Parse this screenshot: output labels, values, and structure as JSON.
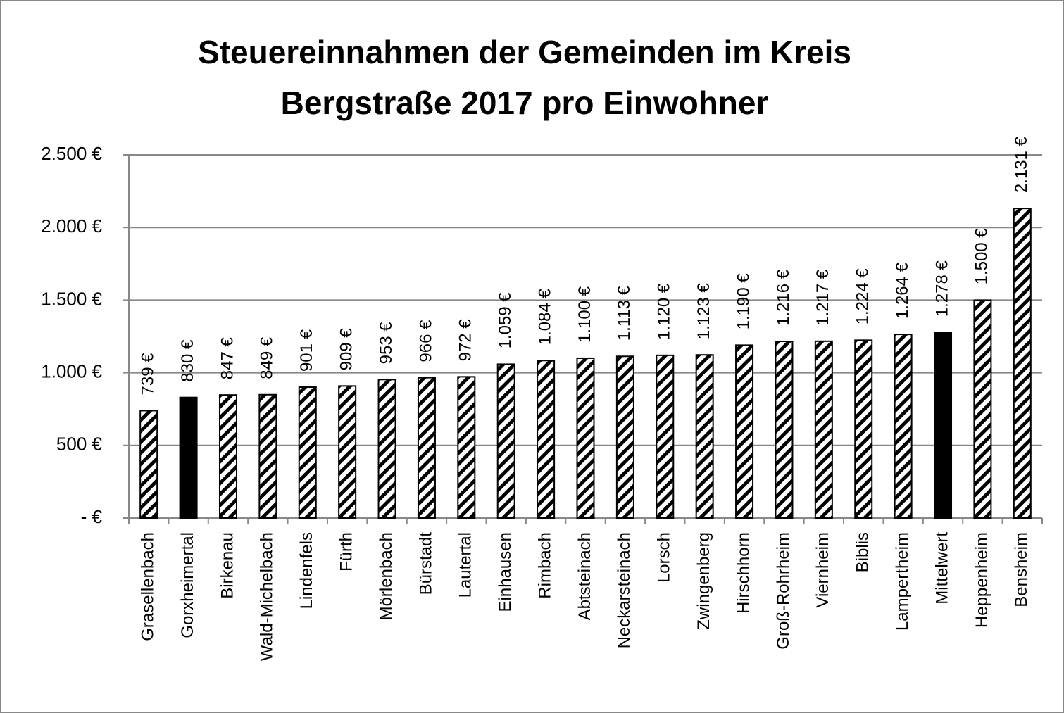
{
  "chart_data": {
    "type": "bar",
    "title": [
      "Steuereinnahmen der Gemeinden im Kreis",
      "Bergstraße 2017 pro Einwohner"
    ],
    "categories": [
      "Grasellenbach",
      "Gorxheimertal",
      "Birkenau",
      "Wald-Michelbach",
      "Lindenfels",
      "Fürth",
      "Mörlenbach",
      "Bürstadt",
      "Lautertal",
      "Einhausen",
      "Rimbach",
      "Abtsteinach",
      "Neckarsteinach",
      "Lorsch",
      "Zwingenberg",
      "Hirschhorn",
      "Groß-Rohrheim",
      "Viernheim",
      "Biblis",
      "Lampertheim",
      "Mittelwert",
      "Heppenheim",
      "Bensheim"
    ],
    "values": [
      739,
      830,
      847,
      849,
      901,
      909,
      953,
      966,
      972,
      1059,
      1084,
      1100,
      1113,
      1120,
      1123,
      1190,
      1216,
      1217,
      1224,
      1264,
      1278,
      1500,
      2131
    ],
    "value_labels": [
      "739 €",
      "830 €",
      "847 €",
      "849 €",
      "901 €",
      "909 €",
      "953 €",
      "966 €",
      "972 €",
      "1.059 €",
      "1.084 €",
      "1.100 €",
      "1.113 €",
      "1.120 €",
      "1.123 €",
      "1.190 €",
      "1.216 €",
      "1.217 €",
      "1.224 €",
      "1.264 €",
      "1.278 €",
      "1.500 €",
      "2.131 €"
    ],
    "patterns": [
      "hatched",
      "solid",
      "hatched",
      "hatched",
      "hatched",
      "hatched",
      "hatched",
      "hatched",
      "hatched",
      "hatched",
      "hatched",
      "hatched",
      "hatched",
      "hatched",
      "hatched",
      "hatched",
      "hatched",
      "hatched",
      "hatched",
      "hatched",
      "solid",
      "hatched",
      "hatched"
    ],
    "color": "#000000",
    "ylim": [
      0,
      2500
    ],
    "yticks": [
      {
        "value": 0,
        "label": "-   €"
      },
      {
        "value": 500,
        "label": "500 €"
      },
      {
        "value": 1000,
        "label": "1.000 €"
      },
      {
        "value": 1500,
        "label": "1.500 €"
      },
      {
        "value": 2000,
        "label": "2.000 €"
      },
      {
        "value": 2500,
        "label": "2.500 €"
      }
    ],
    "grid": true
  }
}
